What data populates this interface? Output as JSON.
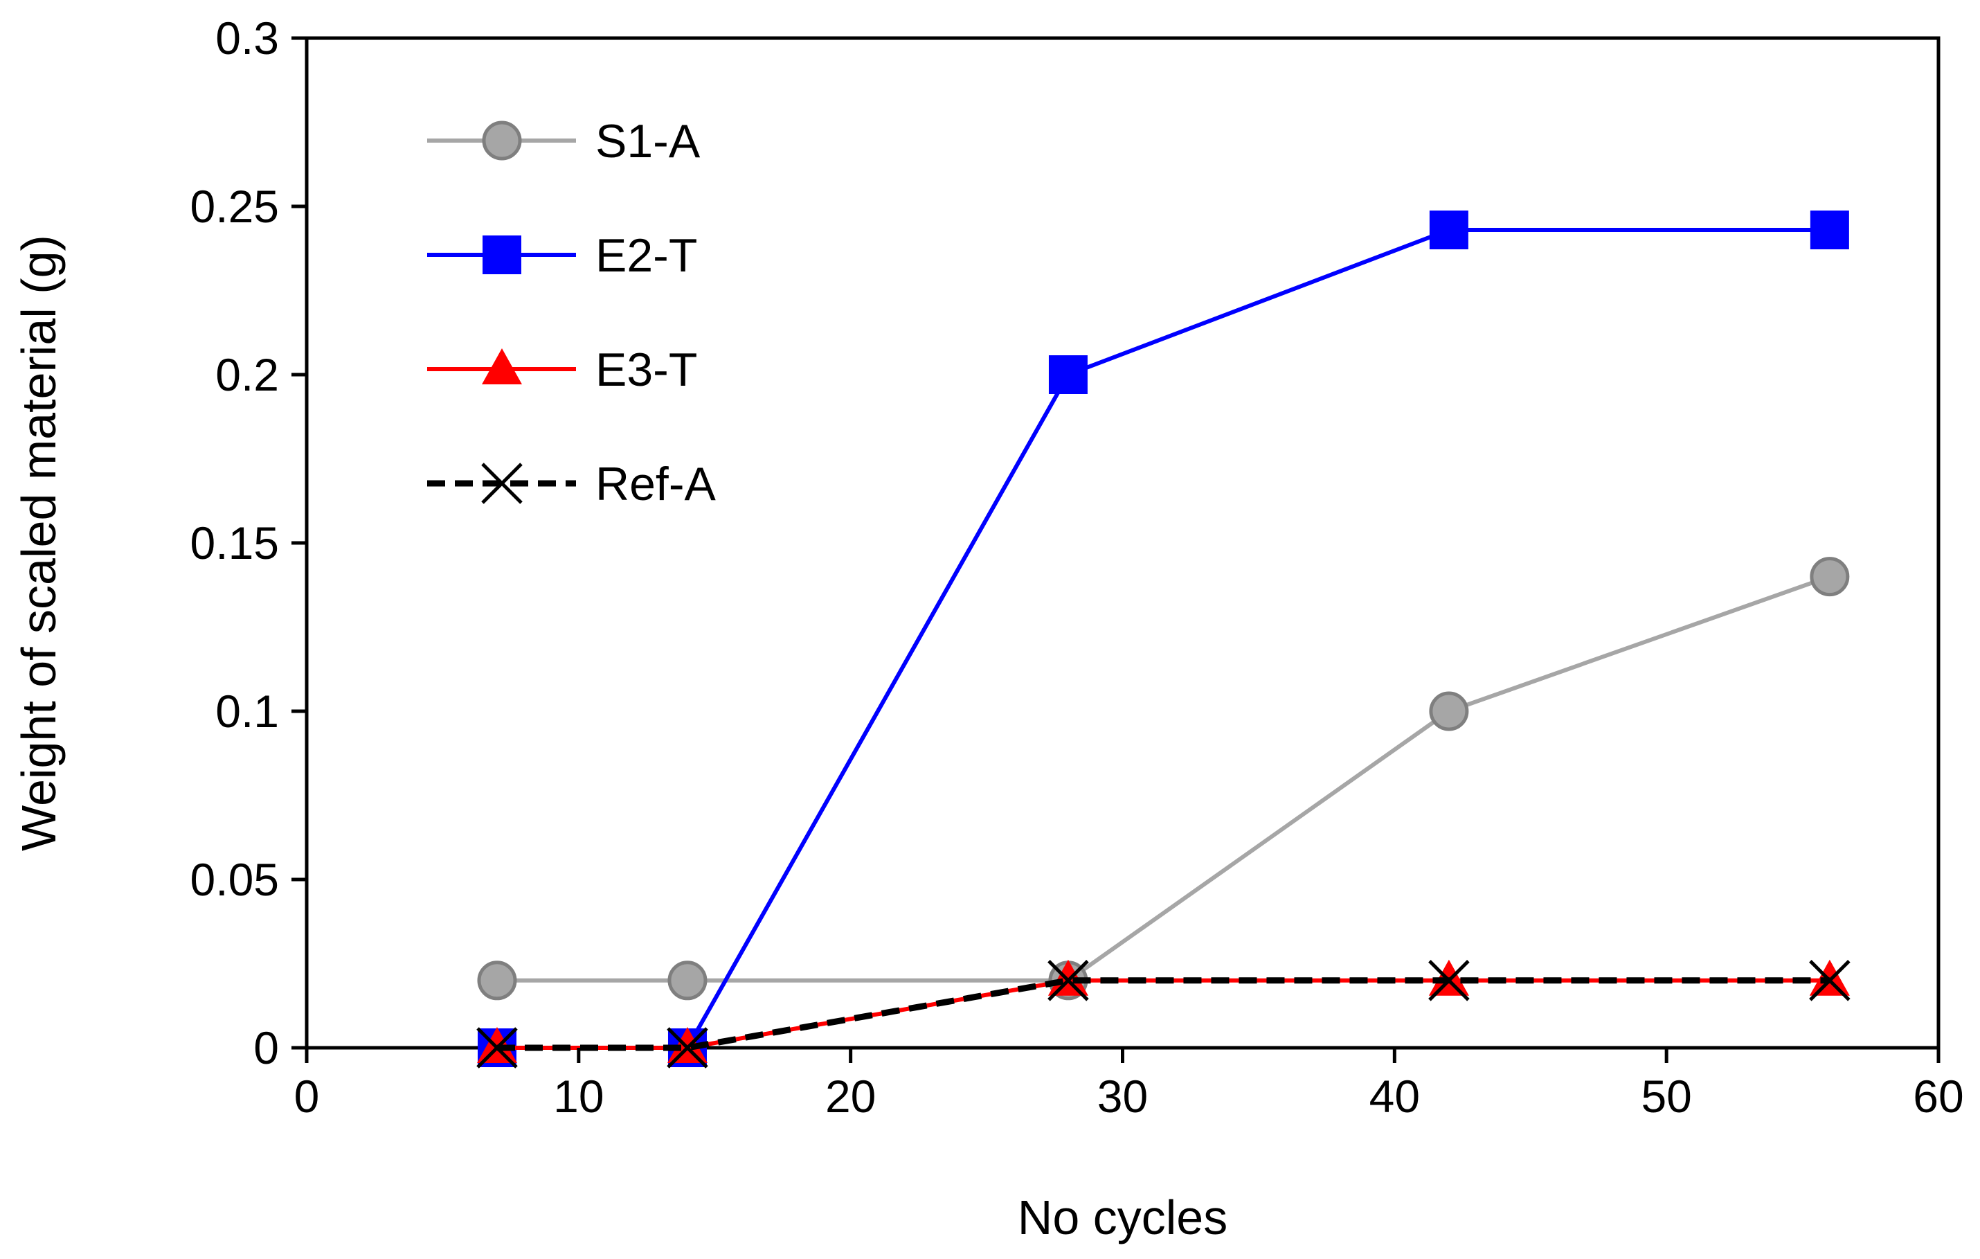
{
  "chart_data": {
    "type": "line",
    "title": "",
    "xlabel": "No cycles",
    "ylabel": "Weight of scaled material (g)",
    "xlim": [
      0,
      60
    ],
    "ylim": [
      0,
      0.3
    ],
    "x_ticks": [
      0,
      10,
      20,
      30,
      40,
      50,
      60
    ],
    "y_ticks": [
      0,
      0.05,
      0.1,
      0.15,
      0.2,
      0.25,
      0.3
    ],
    "x_tick_labels": [
      "0",
      "10",
      "20",
      "30",
      "40",
      "50",
      "60"
    ],
    "y_tick_labels": [
      "0",
      "0.05",
      "0.1",
      "0.15",
      "0.2",
      "0.25",
      "0.3"
    ],
    "grid": false,
    "legend_position": "top-left",
    "series": [
      {
        "name": "S1-A",
        "color": "#a6a6a6",
        "marker": "circle",
        "line": "solid",
        "x": [
          7,
          14,
          28,
          42,
          56
        ],
        "y": [
          0.02,
          0.02,
          0.02,
          0.1,
          0.14
        ]
      },
      {
        "name": "E2-T",
        "color": "#0000ff",
        "marker": "square",
        "line": "solid",
        "x": [
          7,
          14,
          28,
          42,
          56
        ],
        "y": [
          0,
          0,
          0.2,
          0.243,
          0.243
        ]
      },
      {
        "name": "E3-T",
        "color": "#ff0000",
        "marker": "triangle",
        "line": "solid",
        "x": [
          7,
          14,
          28,
          42,
          56
        ],
        "y": [
          0,
          0,
          0.02,
          0.02,
          0.02
        ]
      },
      {
        "name": "Ref-A",
        "color": "#000000",
        "marker": "x",
        "line": "dashed",
        "x": [
          7,
          14,
          28,
          42,
          56
        ],
        "y": [
          0,
          0,
          0.02,
          0.02,
          0.02
        ]
      }
    ]
  }
}
